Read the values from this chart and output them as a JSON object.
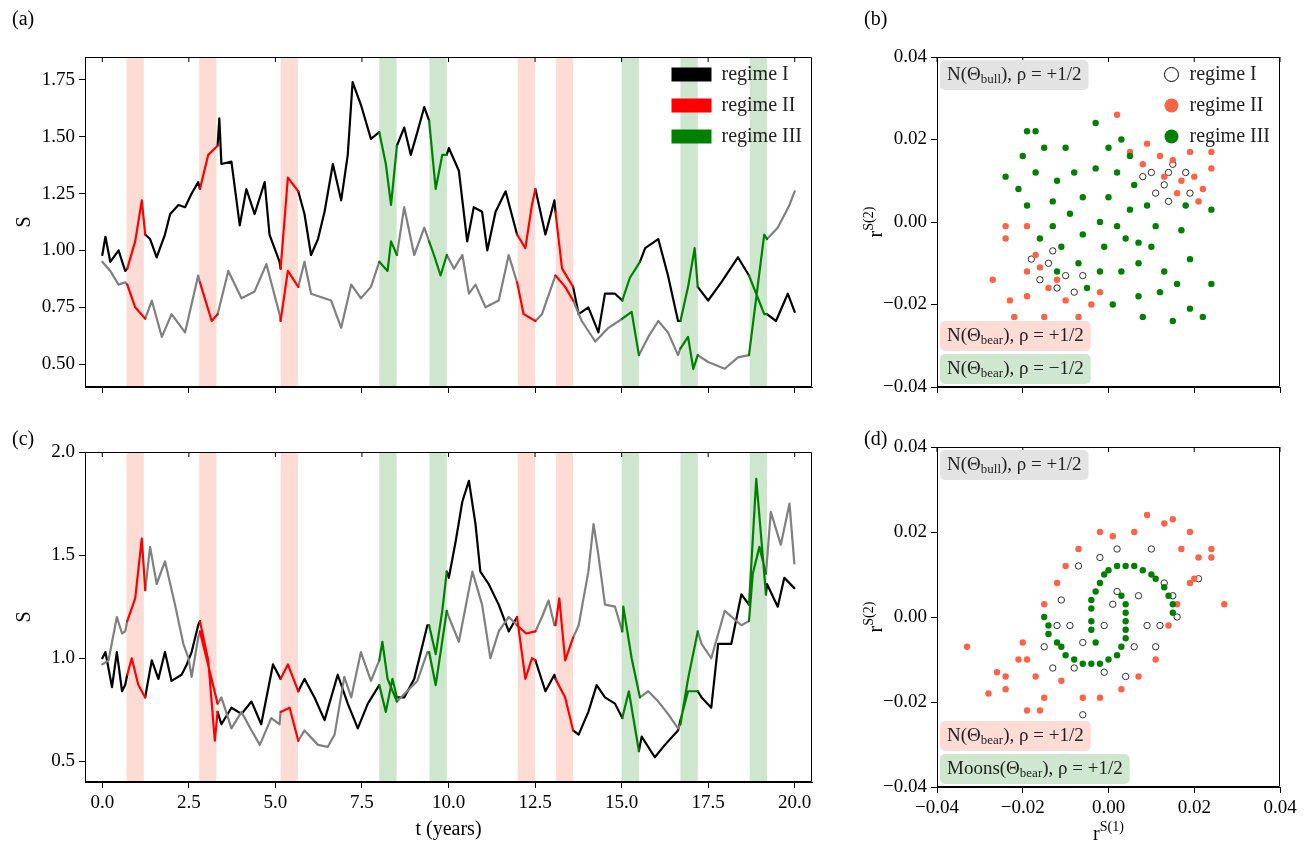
{
  "chart_data": [
    {
      "type": "line",
      "title": "(a)",
      "ylabel": "S",
      "xlim": [
        -0.5,
        20.5
      ],
      "ylim": [
        0.4,
        1.85
      ],
      "xticks": [
        {
          "value": 0,
          "label": null
        },
        {
          "value": 2.5,
          "label": null
        },
        {
          "value": 5,
          "label": null
        },
        {
          "value": 7.5,
          "label": null
        },
        {
          "value": 10,
          "label": null
        },
        {
          "value": 12.5,
          "label": null
        },
        {
          "value": 15,
          "label": null
        },
        {
          "value": 17.5,
          "label": null
        },
        {
          "value": 20,
          "label": null
        }
      ],
      "yticks": [
        {
          "value": 0.5,
          "label": "0.50"
        },
        0.75,
        {
          "value": 1,
          "label": "1.00"
        },
        1.25,
        {
          "value": 1.5,
          "label": "1.50"
        },
        1.75
      ],
      "tick_labels": "y",
      "legend": "top right",
      "marker": "none",
      "line_style": "solid",
      "bands": [
        {
          "axis": "x",
          "from": 0.7,
          "to": 1.2,
          "color": "#fddcd6"
        },
        {
          "axis": "x",
          "from": 2.8,
          "to": 3.3,
          "color": "#fddcd6"
        },
        {
          "axis": "x",
          "from": 5.15,
          "to": 5.65,
          "color": "#fddcd6"
        },
        {
          "axis": "x",
          "from": 12,
          "to": 12.5,
          "color": "#fddcd6"
        },
        {
          "axis": "x",
          "from": 13.1,
          "to": 13.6,
          "color": "#fddcd6"
        },
        {
          "axis": "x",
          "from": 8,
          "to": 8.5,
          "color": "#cde6cd"
        },
        {
          "axis": "x",
          "from": 9.45,
          "to": 9.95,
          "color": "#cde6cd"
        },
        {
          "axis": "x",
          "from": 15,
          "to": 15.5,
          "color": "#cde6cd"
        },
        {
          "axis": "x",
          "from": 16.7,
          "to": 17.2,
          "color": "#cde6cd"
        },
        {
          "axis": "x",
          "from": 18.7,
          "to": 19.2,
          "color": "#cde6cd"
        }
      ],
      "series": [
        {
          "name": "regime I",
          "color": "#000000",
          "x": [
            0,
            0.09,
            0.23,
            0.47,
            0.66,
            0.72,
            null,
            1.24,
            1.38,
            1.57,
            1.81,
            1.96,
            2.2,
            2.39,
            2.58,
            2.77,
            2.82,
            null,
            3.33,
            3.38,
            3.44,
            3.73,
            3.97,
            4.16,
            4.4,
            4.69,
            4.83,
            5.12,
            5.15,
            null,
            5.66,
            5.84,
            6.03,
            6.23,
            6.42,
            6.66,
            6.9,
            7.09,
            7.23,
            7.47,
            7.76,
            8.0,
            null,
            8.51,
            8.72,
            8.91,
            9.1,
            9.3,
            9.44,
            null,
            9.95,
            10.01,
            10.3,
            10.54,
            10.73,
            10.97,
            11.12,
            11.36,
            11.65,
            11.98,
            null,
            12.51,
            12.8,
            13.06,
            13.09,
            null,
            13.6,
            13.76,
            14.04,
            14.33,
            14.52,
            14.81,
            15.02,
            null,
            15.53,
            15.68,
            16.06,
            16.34,
            16.63,
            16.7,
            null,
            17.2,
            17.5,
            17.88,
            18.36,
            18.68,
            null,
            19.2,
            19.46,
            19.8,
            20.0
          ],
          "values": [
            0.98,
            1.06,
            0.95,
            1.0,
            0.91,
            0.92,
            null,
            1.07,
            1.05,
            0.97,
            1.07,
            1.16,
            1.2,
            1.19,
            1.25,
            1.3,
            1.27,
            null,
            1.46,
            1.58,
            1.38,
            1.39,
            1.11,
            1.27,
            1.16,
            1.3,
            1.07,
            0.95,
            0.92,
            null,
            1.26,
            1.16,
            0.98,
            1.05,
            1.17,
            1.38,
            1.22,
            1.42,
            1.74,
            1.64,
            1.49,
            1.52,
            null,
            1.46,
            1.54,
            1.42,
            1.52,
            1.63,
            1.57,
            null,
            1.42,
            1.45,
            1.35,
            1.04,
            1.19,
            1.17,
            1.0,
            1.17,
            1.26,
            1.07,
            null,
            1.27,
            1.07,
            1.22,
            1.17,
            null,
            0.84,
            0.72,
            0.75,
            0.64,
            0.81,
            0.81,
            0.78,
            null,
            0.95,
            1.01,
            1.05,
            0.89,
            0.69,
            0.69,
            null,
            0.84,
            0.78,
            0.86,
            0.97,
            0.89,
            null,
            0.72,
            0.69,
            0.81,
            0.73
          ]
        },
        {
          "color": "#808080",
          "x": [
            0,
            0.23,
            0.47,
            0.66,
            0.72,
            null,
            1.24,
            1.43,
            1.72,
            2.0,
            2.39,
            2.77,
            2.82,
            null,
            3.33,
            3.64,
            4.02,
            4.4,
            4.74,
            5.12,
            5.15,
            null,
            5.66,
            5.84,
            6.03,
            6.61,
            6.9,
            7.19,
            7.47,
            7.76,
            8.0,
            null,
            8.51,
            8.72,
            9.01,
            9.3,
            9.44,
            null,
            9.95,
            10.16,
            10.4,
            10.59,
            10.78,
            11.07,
            11.45,
            11.74,
            11.98,
            null,
            12.51,
            12.7,
            13.09,
            null,
            13.6,
            13.85,
            14.24,
            14.62,
            15.02,
            null,
            15.5,
            15.77,
            16.06,
            16.34,
            16.63,
            16.7,
            null,
            17.2,
            17.5,
            17.98,
            18.36,
            18.68,
            null,
            19.2,
            19.51,
            19.85,
            20.0
          ],
          "values": [
            0.95,
            0.91,
            0.85,
            0.86,
            0.85,
            null,
            0.7,
            0.78,
            0.62,
            0.72,
            0.64,
            0.89,
            0.86,
            null,
            0.72,
            0.91,
            0.79,
            0.82,
            0.94,
            0.72,
            0.69,
            null,
            0.84,
            0.95,
            0.81,
            0.78,
            0.66,
            0.85,
            0.79,
            0.84,
            0.95,
            null,
            0.98,
            1.19,
            0.98,
            1.1,
            1.04,
            null,
            0.98,
            0.92,
            0.98,
            0.81,
            0.85,
            0.75,
            0.78,
            0.98,
            0.86,
            null,
            0.69,
            0.72,
            0.89,
            null,
            0.78,
            0.69,
            0.6,
            0.66,
            0.7,
            null,
            0.54,
            0.62,
            0.69,
            0.64,
            0.54,
            0.57,
            null,
            0.54,
            0.51,
            0.48,
            0.53,
            0.54,
            null,
            1.05,
            1.1,
            1.2,
            1.26
          ]
        },
        {
          "name": "regime II",
          "color": "#ff0000",
          "x": [
            0.72,
            0.95,
            1.14,
            1.24,
            null,
            0.72,
            0.95,
            1.24,
            null,
            2.82,
            3.06,
            3.33,
            null,
            2.82,
            3.16,
            3.33,
            null,
            5.15,
            5.36,
            5.66,
            null,
            5.15,
            5.36,
            5.66,
            null,
            11.98,
            12.22,
            12.41,
            12.51,
            null,
            11.98,
            12.17,
            12.51,
            null,
            13.09,
            13.28,
            13.6,
            null,
            13.09,
            13.37,
            13.6
          ],
          "values": [
            0.92,
            1.04,
            1.22,
            1.07,
            null,
            0.85,
            0.75,
            0.7,
            null,
            1.27,
            1.42,
            1.46,
            null,
            0.86,
            0.69,
            0.72,
            null,
            0.92,
            1.32,
            1.26,
            null,
            0.69,
            0.91,
            0.84,
            null,
            1.07,
            1.01,
            1.2,
            1.27,
            null,
            0.86,
            0.72,
            0.69,
            null,
            1.17,
            0.92,
            0.84,
            null,
            0.89,
            0.84,
            0.78
          ]
        },
        {
          "name": "regime III",
          "color": "#008000",
          "x": [
            8.0,
            8.19,
            8.34,
            8.51,
            null,
            8.0,
            8.24,
            8.34,
            8.51,
            null,
            9.44,
            9.63,
            9.82,
            9.95,
            null,
            9.44,
            9.58,
            9.77,
            9.95,
            null,
            15.02,
            15.24,
            15.53,
            null,
            15.02,
            15.29,
            15.5,
            null,
            16.7,
            16.92,
            17.11,
            17.2,
            null,
            16.7,
            16.92,
            17.07,
            17.2,
            null,
            18.68,
            19.12,
            19.2,
            null,
            18.68,
            19.12,
            19.2
          ],
          "values": [
            1.52,
            1.38,
            1.2,
            1.46,
            null,
            0.95,
            0.91,
            1.04,
            0.98,
            null,
            1.57,
            1.27,
            1.42,
            1.42,
            null,
            1.04,
            0.98,
            0.89,
            0.98,
            null,
            0.78,
            0.88,
            0.95,
            null,
            0.7,
            0.73,
            0.54,
            null,
            0.69,
            0.84,
            1.01,
            0.84,
            null,
            0.57,
            0.62,
            0.48,
            0.54,
            null,
            0.89,
            0.72,
            0.72,
            null,
            0.54,
            1.07,
            1.05
          ]
        }
      ]
    },
    {
      "type": "scatter",
      "title": "(b)",
      "ylabel": "r$^{S(2)}$",
      "xlim": [
        -0.04,
        0.04
      ],
      "ylim": [
        -0.04,
        0.04
      ],
      "xticks": [
        {
          "value": -0.04,
          "label": null
        },
        {
          "value": -0.02,
          "label": null
        },
        {
          "value": 0,
          "label": null
        },
        {
          "value": 0.02,
          "label": null
        },
        {
          "value": 0.04,
          "label": null
        }
      ],
      "yticks": [
        {
          "value": -0.04,
          "label": "−0.04"
        },
        {
          "value": -0.02,
          "label": "−0.02"
        },
        {
          "value": 0,
          "label": "0.00"
        },
        {
          "value": 0.02,
          "label": "0.02"
        },
        {
          "value": 0.04,
          "label": "0.04"
        }
      ],
      "tick_labels": "y",
      "legend": "top right",
      "marker": "circle",
      "annotations": [
        "N(Θ$_{bull}$), ρ = +1/2",
        "N(Θ$_{bear}$), ρ = +1/2",
        "N(Θ$_{bear}$), ρ = −1/2"
      ],
      "series": [
        {
          "name": "regime I",
          "color": "#ffffff",
          "x": [
            0.01,
            0.013,
            0.014,
            0.018,
            0.014,
            0.011,
            0.019,
            0.008,
            0.015,
            -0.014,
            -0.016,
            -0.012,
            -0.01,
            -0.018,
            -0.013,
            -0.008,
            -0.006
          ],
          "values": [
            0.012,
            0.009,
            0.012,
            0.012,
            0.005,
            0.007,
            0.007,
            0.011,
            0.014,
            -0.01,
            -0.014,
            -0.016,
            -0.013,
            -0.009,
            -0.007,
            -0.017,
            -0.013
          ]
        },
        {
          "name": "regime II",
          "color": "#ff6347",
          "x": [
            0.002,
            0.024,
            0.019,
            0.015,
            0.012,
            0.009,
            0.02,
            0.017,
            0.022,
            0.013,
            0.021,
            0.016,
            -0.027,
            -0.023,
            -0.022,
            -0.019,
            -0.015,
            -0.007,
            -0.024,
            -0.024,
            -0.019,
            -0.017,
            -0.014,
            -0.01,
            -0.004,
            -0.002,
            -0.019,
            -0.012,
            0.008,
            0.005,
            0.024,
            -0.016
          ],
          "values": [
            0.026,
            0.017,
            0.017,
            0.015,
            0.016,
            0.019,
            0.011,
            0.01,
            0.008,
            0.011,
            0.005,
            0.007,
            -0.014,
            -0.019,
            -0.023,
            -0.018,
            -0.023,
            -0.023,
            -0.001,
            -0.004,
            -0.012,
            -0.008,
            -0.016,
            -0.019,
            -0.02,
            -0.017,
            -0.001,
            -0.014,
            0.014,
            0.017,
            0.013,
            -0.011
          ]
        },
        {
          "name": "regime III",
          "color": "#008000",
          "x": [
            -0.012,
            -0.008,
            -0.003,
            0.002,
            0.006,
            0.009,
            0.011,
            0.01,
            0.007,
            0.003,
            -0.002,
            -0.007,
            -0.011,
            -0.013,
            -0.013,
            -0.006,
            0.0,
            0.005,
            0.004,
            -0.001,
            -0.006,
            -0.002,
            0.002,
            -0.009,
            0.007,
            -0.024,
            -0.019,
            -0.017,
            -0.003,
            0.024,
            0.022,
            0.015,
            0.008,
            0.001,
            0.019,
            0.024,
            -0.02,
            -0.015,
            -0.021,
            -0.019,
            -0.017,
            -0.01,
            0.005,
            0.017,
            0.019,
            0.016,
            0.012,
            0.007,
            0.013,
            0.018,
            -0.016,
            -0.012,
            -0.005,
            0.0,
            0.003
          ],
          "values": [
            0.01,
            0.012,
            0.013,
            0.012,
            0.009,
            0.004,
            -0.001,
            -0.006,
            -0.01,
            -0.012,
            -0.012,
            -0.01,
            -0.006,
            -0.001,
            0.005,
            0.006,
            0.006,
            0.003,
            -0.004,
            -0.006,
            -0.003,
            0.0,
            -0.001,
            0.002,
            -0.005,
            0.011,
            0.022,
            0.022,
            0.024,
            0.003,
            -0.023,
            -0.024,
            -0.023,
            -0.02,
            -0.021,
            -0.015,
            0.016,
            0.018,
            0.008,
            0.004,
            0.012,
            0.018,
            0.016,
            -0.002,
            -0.009,
            -0.015,
            -0.017,
            -0.018,
            -0.012,
            0.004,
            -0.004,
            -0.012,
            -0.016,
            0.018,
            0.02
          ]
        }
      ]
    },
    {
      "type": "line",
      "title": "(c)",
      "xlabel": "t (years)",
      "ylabel": "S",
      "xlim": [
        -0.5,
        20.5
      ],
      "ylim": [
        0.4,
        2.0
      ],
      "xticks": [
        {
          "value": 0,
          "label": "0.0"
        },
        {
          "value": 2.5,
          "label": "2.5"
        },
        {
          "value": 5,
          "label": "5.0"
        },
        {
          "value": 7.5,
          "label": "7.5"
        },
        {
          "value": 10,
          "label": "10.0"
        },
        {
          "value": 12.5,
          "label": "12.5"
        },
        {
          "value": 15,
          "label": "15.0"
        },
        {
          "value": 17.5,
          "label": "17.5"
        },
        {
          "value": 20,
          "label": "20.0"
        }
      ],
      "yticks": [
        0.5,
        {
          "value": 1,
          "label": "1.0"
        },
        1.5,
        {
          "value": 2,
          "label": "2.0"
        }
      ],
      "marker": "none",
      "line_style": "solid",
      "bands": [
        {
          "axis": "x",
          "from": 0.7,
          "to": 1.2,
          "color": "#fddcd6"
        },
        {
          "axis": "x",
          "from": 2.8,
          "to": 3.3,
          "color": "#fddcd6"
        },
        {
          "axis": "x",
          "from": 5.15,
          "to": 5.65,
          "color": "#fddcd6"
        },
        {
          "axis": "x",
          "from": 12,
          "to": 12.5,
          "color": "#fddcd6"
        },
        {
          "axis": "x",
          "from": 13.1,
          "to": 13.6,
          "color": "#fddcd6"
        },
        {
          "axis": "x",
          "from": 8,
          "to": 8.5,
          "color": "#cde6cd"
        },
        {
          "axis": "x",
          "from": 9.45,
          "to": 9.95,
          "color": "#cde6cd"
        },
        {
          "axis": "x",
          "from": 15,
          "to": 15.5,
          "color": "#cde6cd"
        },
        {
          "axis": "x",
          "from": 16.7,
          "to": 17.2,
          "color": "#cde6cd"
        },
        {
          "axis": "x",
          "from": 18.7,
          "to": 19.2,
          "color": "#cde6cd"
        }
      ],
      "series": [
        {
          "color": "#000000",
          "x": [
            0,
            0.09,
            0.28,
            0.42,
            0.57,
            0.66,
            0.72,
            null,
            1.24,
            1.29,
            1.43,
            1.62,
            1.81,
            2.0,
            2.29,
            2.44,
            2.58,
            2.77,
            2.82,
            null,
            3.33,
            3.44,
            3.73,
            4.02,
            4.31,
            4.59,
            4.93,
            5.15,
            null,
            5.66,
            5.84,
            6.13,
            6.42,
            6.8,
            7.09,
            7.38,
            7.67,
            8.0,
            null,
            8.51,
            8.72,
            9.01,
            9.39,
            9.44,
            null,
            9.95,
            10.01,
            10.21,
            10.4,
            10.59,
            10.78,
            10.92,
            11.16,
            11.45,
            11.74,
            11.98,
            null,
            12.51,
            12.8,
            13.06,
            13.09,
            null,
            13.6,
            13.76,
            14.04,
            14.28,
            14.52,
            14.81,
            15.02,
            null,
            15.5,
            15.58,
            15.96,
            16.25,
            16.63,
            16.7,
            null,
            17.2,
            17.31,
            17.59,
            17.79,
            18.17,
            18.46,
            18.68,
            null,
            19.17,
            19.2,
            19.51,
            19.7,
            19.99
          ],
          "values": [
            1.0,
            1.03,
            0.86,
            1.03,
            0.84,
            0.87,
            0.92,
            null,
            0.81,
            0.86,
            0.99,
            0.9,
            1.03,
            0.89,
            0.92,
            0.97,
            1.03,
            1.16,
            1.18,
            null,
            0.74,
            0.68,
            0.76,
            0.73,
            0.79,
            0.68,
            0.97,
            0.9,
            null,
            0.84,
            0.9,
            0.81,
            0.7,
            0.92,
            0.78,
            0.66,
            0.78,
            0.87,
            null,
            0.81,
            0.81,
            0.9,
            1.16,
            1.16,
            null,
            1.42,
            1.39,
            1.57,
            1.76,
            1.86,
            1.65,
            1.42,
            1.36,
            1.26,
            1.13,
            1.2,
            null,
            0.99,
            0.84,
            0.92,
            0.9,
            null,
            0.65,
            0.63,
            0.74,
            0.87,
            0.81,
            0.78,
            0.71,
            null,
            0.55,
            0.62,
            0.52,
            0.58,
            0.65,
            0.7,
            null,
            0.84,
            0.81,
            0.76,
            1.07,
            1.07,
            1.31,
            1.26,
            null,
            1.31,
            1.36,
            1.25,
            1.39,
            1.34
          ]
        },
        {
          "color": "#808080",
          "x": [
            0,
            0.18,
            0.42,
            0.57,
            0.66,
            0.72,
            null,
            1.24,
            1.38,
            1.57,
            1.81,
            2.1,
            2.34,
            2.49,
            2.58,
            2.77,
            2.82,
            null,
            3.33,
            3.44,
            3.73,
            4.02,
            4.31,
            4.55,
            4.88,
            5.12,
            5.15,
            null,
            5.66,
            5.84,
            6.23,
            6.51,
            6.71,
            6.99,
            7.19,
            7.47,
            7.76,
            8.0,
            null,
            8.51,
            9.1,
            9.39,
            9.44,
            null,
            9.95,
            10.01,
            10.3,
            10.69,
            10.97,
            11.21,
            11.45,
            11.74,
            11.98,
            null,
            12.51,
            12.7,
            12.89,
            13.06,
            13.09,
            null,
            13.6,
            13.76,
            14.04,
            14.19,
            14.33,
            14.52,
            14.81,
            15.02,
            null,
            15.53,
            15.77,
            16.06,
            16.34,
            16.63,
            16.7,
            null,
            17.2,
            17.31,
            17.59,
            17.98,
            18.46,
            18.68,
            null,
            19.17,
            19.31,
            19.6,
            19.85,
            19.99
          ],
          "values": [
            0.97,
            0.99,
            1.2,
            1.12,
            1.13,
            1.18,
            null,
            1.33,
            1.54,
            1.36,
            1.47,
            1.26,
            1.07,
            1.0,
            0.91,
            1.1,
            1.13,
            null,
            0.78,
            0.81,
            0.66,
            0.74,
            0.65,
            0.58,
            0.71,
            0.68,
            0.74,
            null,
            0.6,
            0.65,
            0.58,
            0.57,
            0.63,
            0.91,
            0.81,
            1.03,
            0.89,
            0.99,
            null,
            0.79,
            0.89,
            1.03,
            1.03,
            null,
            1.23,
            1.2,
            1.08,
            1.42,
            1.26,
            1.0,
            1.13,
            1.2,
            1.16,
            null,
            1.13,
            1.2,
            1.28,
            1.16,
            1.16,
            null,
            1.1,
            1.16,
            1.42,
            1.65,
            1.5,
            1.26,
            1.25,
            1.13,
            null,
            0.81,
            0.84,
            0.79,
            0.73,
            0.66,
            0.68,
            null,
            1.13,
            1.07,
            1.0,
            1.23,
            1.16,
            1.18,
            null,
            1.41,
            1.71,
            1.55,
            1.75,
            1.46
          ]
        },
        {
          "color": "#ff0000",
          "x": [
            0.72,
            0.85,
            1.04,
            1.24,
            null,
            0.72,
            0.95,
            1.14,
            1.24,
            null,
            2.82,
            3.06,
            3.25,
            3.33,
            null,
            2.82,
            3.33,
            null,
            5.15,
            5.36,
            5.66,
            null,
            5.15,
            5.41,
            5.66,
            null,
            11.98,
            12.22,
            12.41,
            12.51,
            null,
            11.98,
            12.24,
            12.51,
            null,
            13.09,
            13.37,
            13.6,
            null,
            13.09,
            13.2,
            13.37,
            13.6
          ],
          "values": [
            0.92,
            1.0,
            0.87,
            0.81,
            null,
            1.18,
            1.29,
            1.58,
            1.33,
            null,
            1.18,
            0.99,
            0.6,
            0.74,
            null,
            1.13,
            0.78,
            null,
            0.9,
            0.97,
            0.84,
            null,
            0.74,
            0.76,
            0.6,
            null,
            1.2,
            0.9,
            1.0,
            0.99,
            null,
            1.16,
            1.12,
            1.13,
            null,
            0.9,
            0.81,
            0.65,
            null,
            1.16,
            1.29,
            0.99,
            1.1
          ]
        },
        {
          "color": "#008000",
          "x": [
            8.0,
            8.19,
            8.38,
            8.51,
            null,
            8.0,
            8.09,
            8.24,
            8.51,
            null,
            9.44,
            9.63,
            9.82,
            9.95,
            null,
            9.44,
            9.63,
            9.95,
            null,
            15.02,
            15.21,
            15.5,
            null,
            15.02,
            15.05,
            15.29,
            15.53,
            null,
            16.7,
            16.92,
            17.2,
            null,
            16.7,
            16.92,
            17.2,
            null,
            18.68,
            18.89,
            19.17,
            null,
            18.68,
            18.79,
            18.98,
            19.17
          ],
          "values": [
            0.87,
            0.74,
            0.9,
            0.81,
            null,
            0.99,
            1.08,
            0.9,
            0.79,
            null,
            1.16,
            1.02,
            1.23,
            1.42,
            null,
            1.03,
            0.87,
            1.23,
            null,
            0.71,
            0.84,
            0.55,
            null,
            1.13,
            1.25,
            1.0,
            0.81,
            null,
            0.7,
            0.84,
            0.84,
            null,
            0.68,
            0.9,
            1.13,
            null,
            1.26,
            1.87,
            1.31,
            null,
            1.18,
            1.41,
            1.54,
            1.41
          ]
        }
      ]
    },
    {
      "type": "scatter",
      "title": "(d)",
      "xlabel": "r$^{S(1)}$",
      "ylabel": "r$^{S(2)}$",
      "xlim": [
        -0.04,
        0.04
      ],
      "ylim": [
        -0.04,
        0.04
      ],
      "xticks": [
        {
          "value": -0.04,
          "label": "−0.04"
        },
        {
          "value": -0.02,
          "label": "−0.02"
        },
        {
          "value": 0,
          "label": "0.00"
        },
        {
          "value": 0.02,
          "label": "0.02"
        },
        {
          "value": 0.04,
          "label": "0.04"
        }
      ],
      "yticks": [
        {
          "value": -0.04,
          "label": "−0.04"
        },
        {
          "value": -0.02,
          "label": "−0.02"
        },
        {
          "value": 0,
          "label": "0.00"
        },
        {
          "value": 0.02,
          "label": "0.02"
        },
        {
          "value": 0.04,
          "label": "0.04"
        }
      ],
      "marker": "circle",
      "annotations": [
        "N(Θ$_{bull}$), ρ = +1/2",
        "N(Θ$_{bear}$), ρ = +1/2",
        "Moons(Θ$_{bear}$), ρ = +1/2"
      ],
      "series": [
        {
          "color": "#ffffff",
          "x": [
            -0.011,
            -0.009,
            -0.006,
            -0.012,
            0.007,
            0.009,
            0.006,
            0.013,
            0.015,
            0.01,
            0.002,
            -0.002,
            -0.007,
            -0.008,
            -0.001,
            0.004,
            -0.015,
            -0.013,
            -0.006,
            0.021,
            0.016,
            0.001,
            -0.001,
            0.002,
            0.011,
            0.012
          ],
          "values": [
            0.004,
            -0.002,
            -0.006,
            -0.002,
            0.005,
            -0.002,
            -0.007,
            0.008,
            0.005,
            0.016,
            0.016,
            0.014,
            0.012,
            -0.012,
            -0.013,
            -0.014,
            -0.007,
            -0.012,
            -0.023,
            0.009,
            0.0,
            0.003,
            -0.002,
            0.006,
            -0.007,
            -0.002
          ]
        },
        {
          "color": "#ff6347",
          "x": [
            -0.033,
            0.027,
            0.009,
            0.015,
            -0.028,
            -0.019,
            -0.016,
            -0.024,
            -0.026,
            0.024,
            0.021,
            0.019,
            0.013,
            0.001,
            -0.01,
            -0.012,
            -0.015,
            -0.02,
            -0.019,
            -0.017,
            -0.006,
            -0.002,
            0.003,
            0.007,
            0.011,
            0.014,
            0.016,
            0.019,
            -0.011,
            -0.015,
            -0.002,
            0.006,
            0.02,
            0.024,
            -0.021,
            -0.024,
            -0.007,
            0.017
          ],
          "values": [
            -0.007,
            0.003,
            0.024,
            0.023,
            -0.018,
            -0.022,
            -0.022,
            -0.014,
            -0.013,
            0.014,
            0.014,
            0.02,
            0.022,
            0.019,
            0.012,
            0.008,
            0.003,
            -0.006,
            -0.01,
            -0.014,
            -0.019,
            -0.019,
            -0.017,
            -0.014,
            -0.01,
            -0.002,
            0.003,
            0.008,
            -0.015,
            -0.019,
            0.02,
            0.02,
            0.009,
            0.016,
            -0.01,
            -0.017,
            0.016,
            0.016
          ]
        },
        {
          "color": "#008000",
          "x": [
            -0.015,
            -0.014,
            -0.011,
            -0.008,
            -0.004,
            0.0,
            0.003,
            0.004,
            0.004,
            0.003,
            -0.014,
            -0.012,
            -0.01,
            -0.006,
            -0.002,
            0.002,
            0.004,
            0.004,
            0.004,
            0.015,
            0.014,
            0.011,
            0.008,
            0.004,
            0.0,
            -0.002,
            -0.004,
            -0.004,
            -0.003,
            0.015,
            0.013,
            0.01,
            0.006,
            0.002,
            -0.001,
            -0.003,
            -0.004,
            -0.004
          ],
          "values": [
            0.0,
            -0.004,
            -0.007,
            -0.01,
            -0.011,
            -0.01,
            -0.007,
            -0.003,
            0.001,
            0.005,
            -0.002,
            -0.006,
            -0.009,
            -0.011,
            -0.011,
            -0.009,
            -0.005,
            -0.001,
            0.003,
            0.001,
            0.005,
            0.009,
            0.011,
            0.012,
            0.011,
            0.008,
            0.004,
            -0.001,
            -0.006,
            0.003,
            0.007,
            0.01,
            0.012,
            0.012,
            0.01,
            0.006,
            0.002,
            -0.003
          ]
        }
      ]
    }
  ]
}
